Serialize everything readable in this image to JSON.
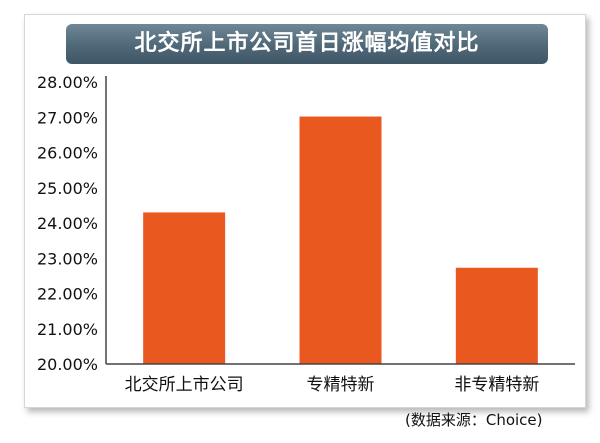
{
  "chart_data": {
    "type": "bar",
    "title": "北交所上市公司首日涨幅均值对比",
    "categories": [
      "北交所上市公司",
      "专精特新",
      "非专精特新"
    ],
    "values": [
      24.3,
      27.02,
      22.73
    ],
    "yticks": [
      "20.00%",
      "21.00%",
      "22.00%",
      "23.00%",
      "24.00%",
      "25.00%",
      "26.00%",
      "27.00%",
      "28.00%"
    ],
    "ylim": [
      20,
      28
    ],
    "xlabel": "",
    "ylabel": "",
    "grid": false,
    "legend": "none",
    "bar_color": "#e8581f",
    "source": "(数据来源：Choice)"
  }
}
